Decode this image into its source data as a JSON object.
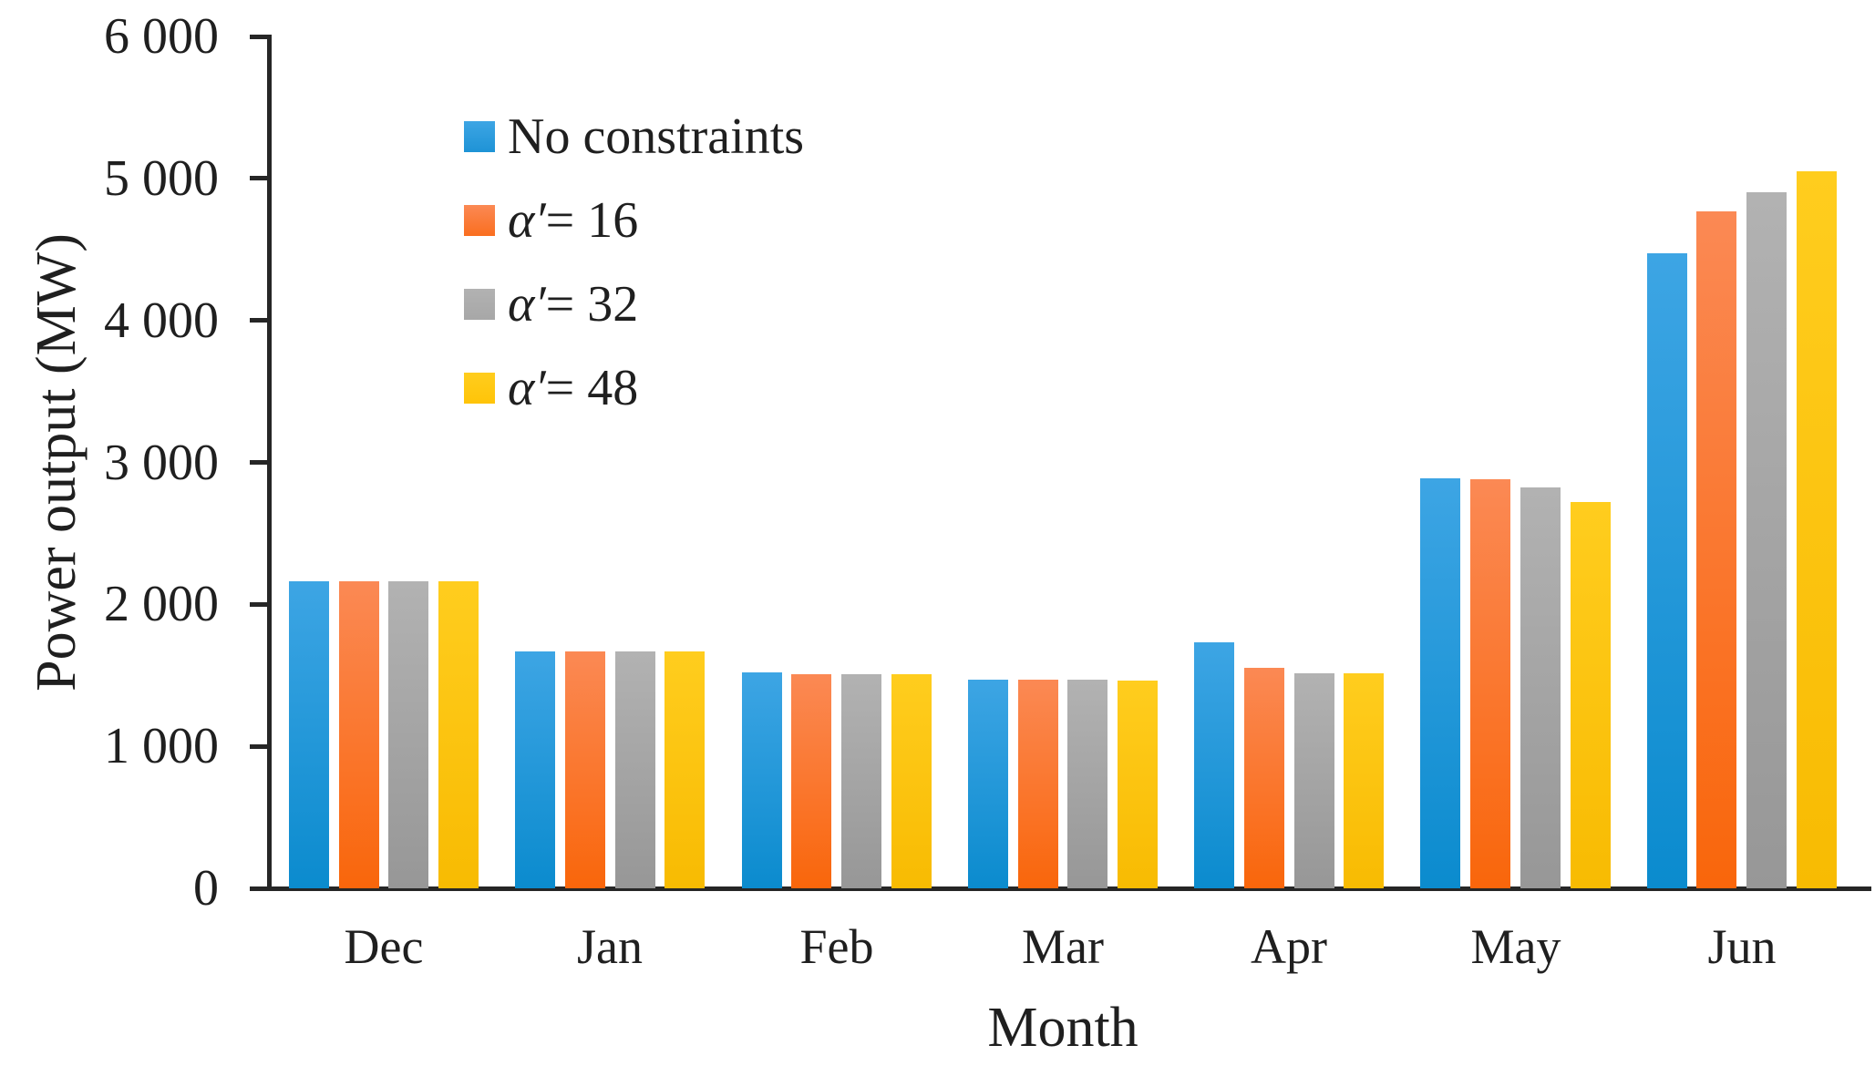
{
  "chart_data": {
    "type": "bar",
    "title": "",
    "xlabel": "Month",
    "ylabel": "Power output (MW)",
    "ylim": [
      0,
      6000
    ],
    "ytick_step": 1000,
    "grid": false,
    "legend_position": "inside-top-left",
    "yticks": [
      {
        "value": 6000,
        "label": "6 000"
      },
      {
        "value": 5000,
        "label": "5 000"
      },
      {
        "value": 4000,
        "label": "4 000"
      },
      {
        "value": 3000,
        "label": "3 000"
      },
      {
        "value": 2000,
        "label": "2 000"
      },
      {
        "value": 1000,
        "label": "1 000"
      },
      {
        "value": 0,
        "label": "0"
      }
    ],
    "categories": [
      "Dec",
      "Jan",
      "Feb",
      "Mar",
      "Apr",
      "May",
      "Jun"
    ],
    "series": [
      {
        "name": "No constraints",
        "name_prefix": "",
        "name_rest": "No constraints",
        "key": "no-constraints",
        "color": "#1E93D6",
        "color_top": "#3DA5E4",
        "color_bottom": "#0B8BCE",
        "values": [
          2160,
          1670,
          1520,
          1470,
          1730,
          2890,
          4470
        ]
      },
      {
        "name": "α′ = 16",
        "name_prefix": "α′",
        "name_rest": "= 16",
        "key": "alpha-16",
        "color": "#FA6E1F",
        "color_top": "#FB8954",
        "color_bottom": "#F9660B",
        "values": [
          2160,
          1670,
          1510,
          1470,
          1555,
          2880,
          4770
        ]
      },
      {
        "name": "α′ = 32",
        "name_prefix": "α′",
        "name_rest": "= 32",
        "key": "alpha-32",
        "color": "#A7A7A7",
        "color_top": "#B2B2B2",
        "color_bottom": "#979797",
        "values": [
          2160,
          1670,
          1510,
          1470,
          1515,
          2825,
          4900
        ]
      },
      {
        "name": "α′ = 48",
        "name_prefix": "α′",
        "name_rest": "= 48",
        "key": "alpha-48",
        "color": "#FFC408",
        "color_top": "#FFCD1E",
        "color_bottom": "#F8BB02",
        "values": [
          2160,
          1670,
          1510,
          1465,
          1515,
          2720,
          5050
        ]
      }
    ]
  }
}
